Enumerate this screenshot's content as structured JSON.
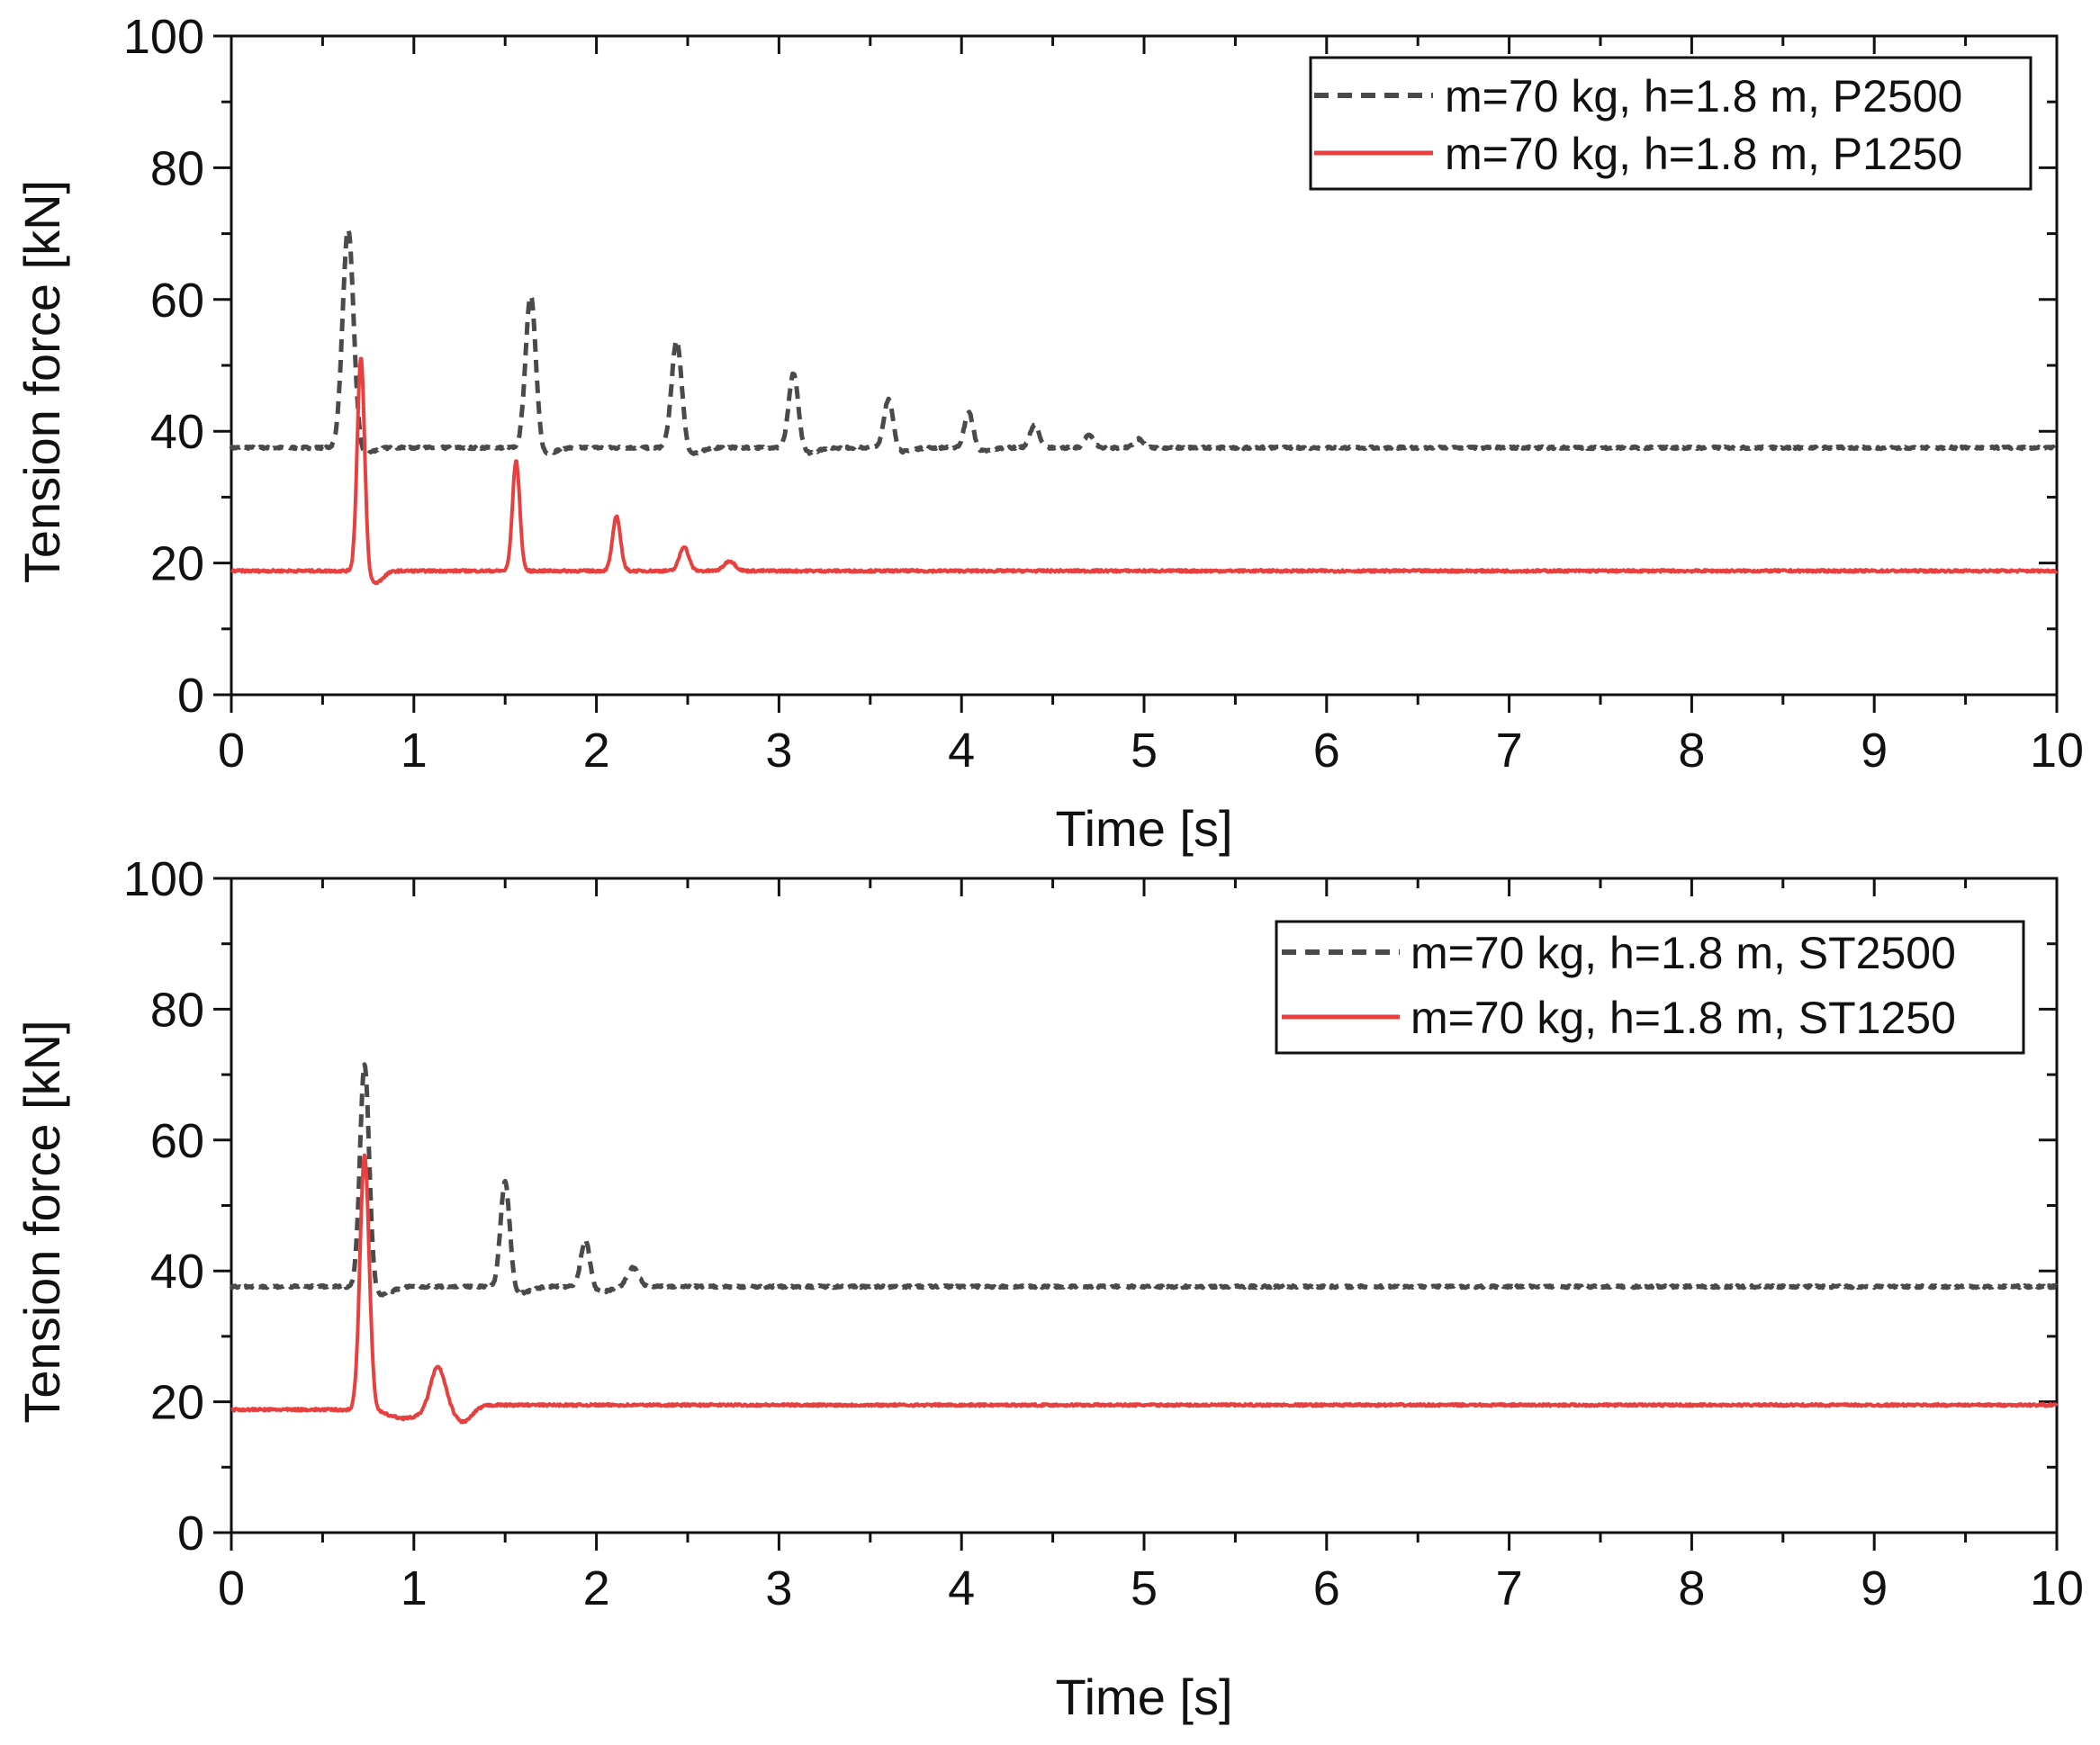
{
  "chart_data": [
    {
      "type": "line",
      "panel": "top",
      "xlabel": "Time [s]",
      "ylabel": "Tension force [kN]",
      "xlim": [
        0,
        10
      ],
      "ylim": [
        0,
        100
      ],
      "x_ticks": [
        "0",
        "1",
        "2",
        "3",
        "4",
        "5",
        "6",
        "7",
        "8",
        "9",
        "10"
      ],
      "y_ticks": [
        "0",
        "20",
        "40",
        "60",
        "80",
        "100"
      ],
      "legend_position": "top-right",
      "series": [
        {
          "name": "m=70 kg, h=1.8 m, P2500",
          "style": "dashed",
          "color": "#4a4a4a",
          "baseline": 37.5,
          "peaks": [
            {
              "t": 0.64,
              "peak": 71,
              "width": 0.03
            },
            {
              "t": 1.64,
              "peak": 61,
              "width": 0.028
            },
            {
              "t": 2.44,
              "peak": 54,
              "width": 0.028
            },
            {
              "t": 3.08,
              "peak": 49,
              "width": 0.026
            },
            {
              "t": 3.6,
              "peak": 45,
              "width": 0.025
            },
            {
              "t": 4.04,
              "peak": 43,
              "width": 0.024
            },
            {
              "t": 4.4,
              "peak": 41,
              "width": 0.024
            },
            {
              "t": 4.7,
              "peak": 39.5,
              "width": 0.024
            },
            {
              "t": 4.97,
              "peak": 38.8,
              "width": 0.024
            }
          ],
          "dips": [
            {
              "t": 0.72,
              "depth": 1.0,
              "width": 0.05
            },
            {
              "t": 1.72,
              "depth": 1.0,
              "width": 0.05
            },
            {
              "t": 2.52,
              "depth": 1.0,
              "width": 0.05
            },
            {
              "t": 3.16,
              "depth": 0.8,
              "width": 0.05
            },
            {
              "t": 3.68,
              "depth": 0.6,
              "width": 0.05
            },
            {
              "t": 4.12,
              "depth": 0.5,
              "width": 0.05
            }
          ]
        },
        {
          "name": "m=70 kg, h=1.8 m, P1250",
          "style": "solid",
          "color": "#e8403e",
          "baseline": 18.8,
          "peaks": [
            {
              "t": 0.71,
              "peak": 51.5,
              "width": 0.02
            },
            {
              "t": 1.56,
              "peak": 35.5,
              "width": 0.02
            },
            {
              "t": 2.11,
              "peak": 27,
              "width": 0.022
            },
            {
              "t": 2.48,
              "peak": 22.5,
              "width": 0.025
            },
            {
              "t": 2.73,
              "peak": 20.3,
              "width": 0.03
            }
          ],
          "dips": [
            {
              "t": 0.79,
              "depth": 1.8,
              "width": 0.04
            }
          ]
        }
      ]
    },
    {
      "type": "line",
      "panel": "bottom",
      "xlabel": "Time [s]",
      "ylabel": "Tension force [kN]",
      "xlim": [
        0,
        10
      ],
      "ylim": [
        0,
        100
      ],
      "x_ticks": [
        "0",
        "1",
        "2",
        "3",
        "4",
        "5",
        "6",
        "7",
        "8",
        "9",
        "10"
      ],
      "y_ticks": [
        "0",
        "20",
        "40",
        "60",
        "80",
        "100"
      ],
      "legend_position": "top-right",
      "series": [
        {
          "name": "m=70 kg, h=1.8 m, ST2500",
          "style": "dashed",
          "color": "#4a4a4a",
          "baseline": 37.6,
          "peaks": [
            {
              "t": 0.73,
              "peak": 72,
              "width": 0.025
            },
            {
              "t": 1.5,
              "peak": 54,
              "width": 0.025
            },
            {
              "t": 1.94,
              "peak": 45,
              "width": 0.025
            },
            {
              "t": 2.2,
              "peak": 40.5,
              "width": 0.03
            }
          ],
          "dips": [
            {
              "t": 0.82,
              "depth": 1.2,
              "width": 0.06
            },
            {
              "t": 1.58,
              "depth": 1.0,
              "width": 0.06
            },
            {
              "t": 2.02,
              "depth": 0.8,
              "width": 0.06
            }
          ]
        },
        {
          "name": "m=70 kg, h=1.8 m, ST1250",
          "style": "solid",
          "color": "#e8403e",
          "baseline": 19.5,
          "peaks": [
            {
              "t": 0.73,
              "peak": 58,
              "width": 0.025
            },
            {
              "t": 1.13,
              "peak": 26,
              "width": 0.04
            }
          ],
          "dips": [
            {
              "t": 0.95,
              "depth": 2.0,
              "width": 0.12
            },
            {
              "t": 1.27,
              "depth": 2.5,
              "width": 0.05
            }
          ],
          "pre_impact": {
            "until": 0.7,
            "value": 18.8
          }
        }
      ]
    }
  ]
}
